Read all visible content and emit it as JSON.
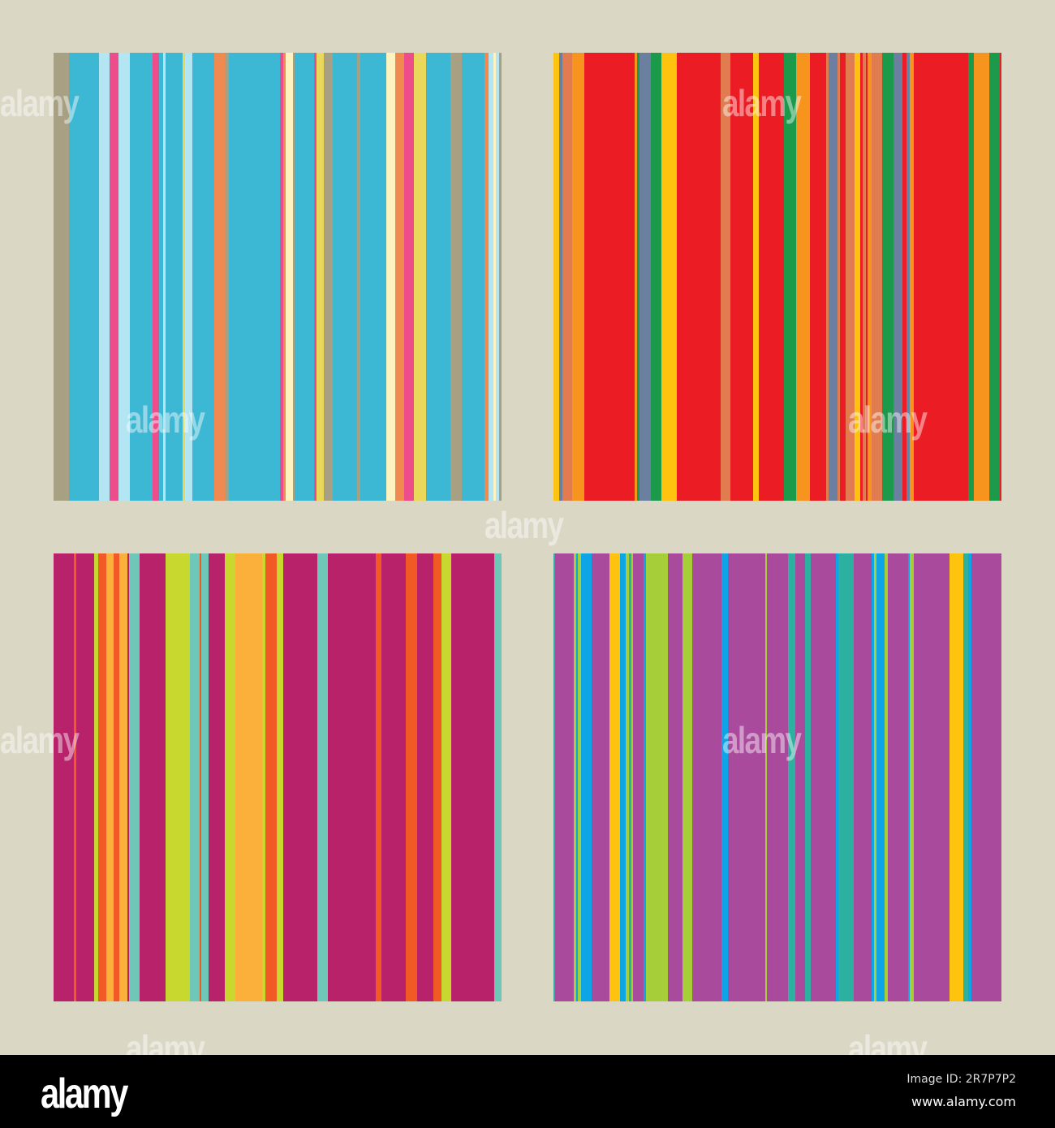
{
  "panels": [
    {
      "name": "blue-pink-stripes",
      "main": "#3db8d4",
      "accents": [
        "#fdf3c0",
        "#ee4d8c",
        "#f08a50",
        "#ead85a",
        "#a8a082",
        "#b3e5f2",
        "#3db8d4"
      ]
    },
    {
      "name": "red-green-stripes",
      "main": "#ec1c24",
      "accents": [
        "#fdc30f",
        "#1a9a4a",
        "#e07c50",
        "#6b7fa0",
        "#f7941d",
        "#ec1c24"
      ]
    },
    {
      "name": "magenta-lime-stripes",
      "main": "#b8226a",
      "accents": [
        "#f15a24",
        "#6fc7b8",
        "#c8d82e",
        "#fbb03b",
        "#b8226a"
      ]
    },
    {
      "name": "purple-yellow-stripes",
      "main": "#a94a9c",
      "accents": [
        "#0ea5e6",
        "#fdc30f",
        "#a6ce39",
        "#2cb0a0",
        "#a94a9c"
      ]
    }
  ],
  "watermark": "alamy",
  "footer": {
    "logo": "alamy",
    "image_id": "Image ID: 2R7P7P2",
    "site": "www.alamy.com"
  }
}
